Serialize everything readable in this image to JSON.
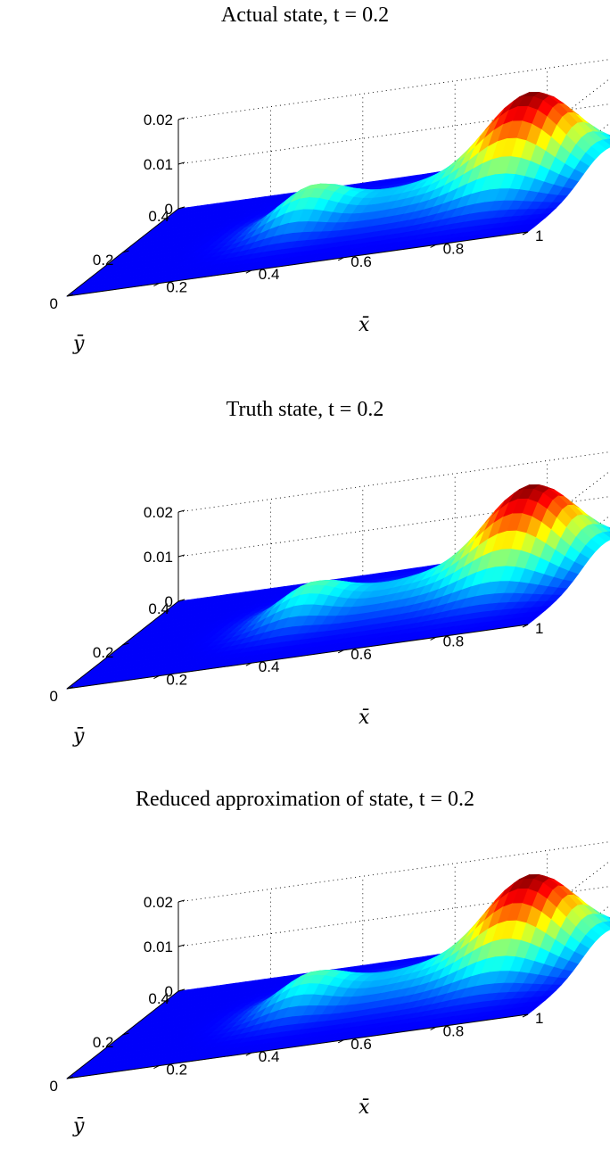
{
  "chart_data": [
    {
      "type": "surface",
      "title": "Actual state, t = 0.2",
      "xlabel": "x̄",
      "ylabel": "ȳ",
      "xlim": [
        0,
        1
      ],
      "ylim": [
        0,
        0.4
      ],
      "zlim": [
        0,
        0.02
      ],
      "xticks": [
        "0.2",
        "0.4",
        "0.6",
        "0.8",
        "1"
      ],
      "yticks": [
        "0",
        "0.2",
        "0.4"
      ],
      "zticks": [
        "0",
        "0.01",
        "0.02"
      ],
      "grid": true,
      "colormap": "jet",
      "peaks": [
        {
          "x": 0.84,
          "y": 0.27,
          "z": 0.02
        },
        {
          "x": 0.4,
          "y": 0.21,
          "z": 0.008
        }
      ]
    },
    {
      "type": "surface",
      "title": "Truth state, t = 0.2",
      "xlabel": "x̄",
      "ylabel": "ȳ",
      "xlim": [
        0,
        1
      ],
      "ylim": [
        0,
        0.4
      ],
      "zlim": [
        0,
        0.02
      ],
      "xticks": [
        "0.2",
        "0.4",
        "0.6",
        "0.8",
        "1"
      ],
      "yticks": [
        "0",
        "0.2",
        "0.4"
      ],
      "zticks": [
        "0",
        "0.01",
        "0.02"
      ],
      "grid": true,
      "colormap": "jet",
      "peaks": [
        {
          "x": 0.84,
          "y": 0.27,
          "z": 0.02
        },
        {
          "x": 0.4,
          "y": 0.21,
          "z": 0.007
        }
      ]
    },
    {
      "type": "surface",
      "title": "Reduced approximation of state, t = 0.2",
      "xlabel": "x̄",
      "ylabel": "ȳ",
      "xlim": [
        0,
        1
      ],
      "ylim": [
        0,
        0.4
      ],
      "zlim": [
        0,
        0.02
      ],
      "xticks": [
        "0.2",
        "0.4",
        "0.6",
        "0.8",
        "1"
      ],
      "yticks": [
        "0",
        "0.2",
        "0.4"
      ],
      "zticks": [
        "0",
        "0.01",
        "0.02"
      ],
      "grid": true,
      "colormap": "jet",
      "peaks": [
        {
          "x": 0.84,
          "y": 0.27,
          "z": 0.02
        },
        {
          "x": 0.4,
          "y": 0.21,
          "z": 0.007
        }
      ]
    }
  ]
}
